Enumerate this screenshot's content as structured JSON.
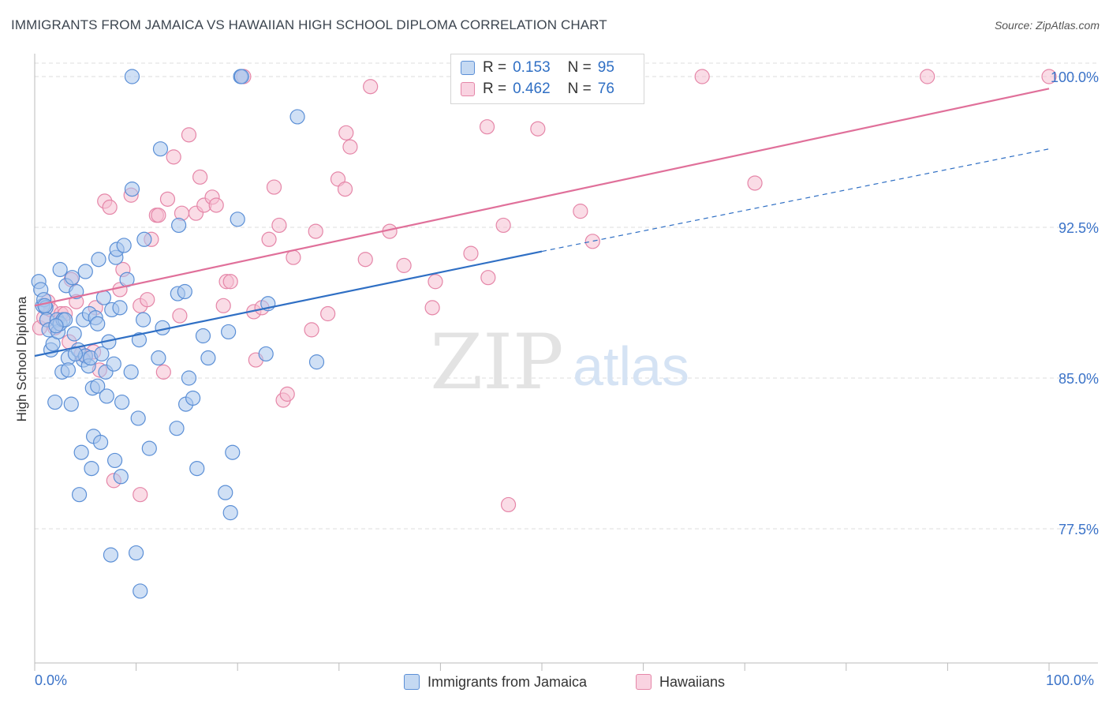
{
  "title": "IMMIGRANTS FROM JAMAICA VS HAWAIIAN HIGH SCHOOL DIPLOMA CORRELATION CHART",
  "source": "Source: ZipAtlas.com",
  "watermark": {
    "zip": "ZIP",
    "atlas": "atlas"
  },
  "colors": {
    "blue_fill": "#a9c6ec",
    "blue_stroke": "#5b8fd6",
    "blue_line": "#2f6fc4",
    "pink_fill": "#f6bfd2",
    "pink_stroke": "#e586a8",
    "pink_line": "#e0709a",
    "axis_label": "#3b73c8",
    "grid": "#dddddd"
  },
  "legend": {
    "series": [
      {
        "r_label": "R =",
        "r_value": "0.153",
        "n_label": "N =",
        "n_value": "95"
      },
      {
        "r_label": "R =",
        "r_value": "0.462",
        "n_label": "N =",
        "n_value": "76"
      }
    ]
  },
  "bottom_legend": {
    "jamaica": "Immigrants from Jamaica",
    "hawaiians": "Hawaiians"
  },
  "chart_data": {
    "type": "scatter",
    "title": "IMMIGRANTS FROM JAMAICA VS HAWAIIAN HIGH SCHOOL DIPLOMA CORRELATION CHART",
    "xlabel": "",
    "ylabel": "High School Diploma",
    "xlim": [
      0,
      100
    ],
    "ylim": [
      70.5,
      101.2
    ],
    "x_tick_labels": [
      "0.0%",
      "100.0%"
    ],
    "y_ticks": [
      77.5,
      85.0,
      92.5,
      100.0
    ],
    "y_tick_labels": [
      "77.5%",
      "85.0%",
      "92.5%",
      "100.0%"
    ],
    "grid": true,
    "legend_position": "top-center",
    "series": [
      {
        "name": "Immigrants from Jamaica",
        "color": "blue",
        "trend": {
          "x0": 0,
          "y0": 86.1,
          "x1": 50,
          "y1": 91.3,
          "dashed_to_x": 100,
          "dashed_to_y": 96.4
        },
        "points": [
          [
            0.4,
            89.8
          ],
          [
            0.6,
            89.4
          ],
          [
            0.8,
            88.6
          ],
          [
            0.9,
            88.9
          ],
          [
            1.1,
            88.5
          ],
          [
            1.2,
            87.9
          ],
          [
            1.4,
            87.4
          ],
          [
            1.6,
            86.4
          ],
          [
            1.8,
            86.7
          ],
          [
            2.0,
            83.8
          ],
          [
            2.2,
            87.9
          ],
          [
            2.3,
            87.3
          ],
          [
            2.5,
            87.7
          ],
          [
            2.5,
            90.4
          ],
          [
            2.7,
            85.3
          ],
          [
            2.8,
            87.9
          ],
          [
            3.1,
            89.6
          ],
          [
            3.3,
            86.0
          ],
          [
            3.3,
            85.4
          ],
          [
            3.6,
            83.7
          ],
          [
            3.7,
            90.0
          ],
          [
            3.9,
            87.2
          ],
          [
            4.1,
            89.3
          ],
          [
            4.3,
            86.4
          ],
          [
            4.4,
            79.2
          ],
          [
            4.6,
            81.3
          ],
          [
            4.8,
            85.9
          ],
          [
            4.8,
            87.9
          ],
          [
            5.0,
            86.1
          ],
          [
            5.0,
            90.3
          ],
          [
            5.3,
            85.6
          ],
          [
            5.4,
            88.2
          ],
          [
            5.5,
            86.0
          ],
          [
            5.6,
            80.5
          ],
          [
            5.7,
            84.5
          ],
          [
            5.8,
            82.1
          ],
          [
            6.0,
            88.0
          ],
          [
            6.2,
            84.6
          ],
          [
            6.2,
            87.7
          ],
          [
            6.3,
            90.9
          ],
          [
            6.5,
            81.8
          ],
          [
            6.6,
            86.2
          ],
          [
            6.8,
            89.0
          ],
          [
            7.0,
            85.3
          ],
          [
            7.1,
            84.1
          ],
          [
            7.3,
            86.8
          ],
          [
            7.5,
            76.2
          ],
          [
            7.6,
            88.4
          ],
          [
            7.8,
            85.7
          ],
          [
            7.9,
            80.9
          ],
          [
            8.0,
            91.0
          ],
          [
            8.1,
            91.4
          ],
          [
            8.4,
            88.5
          ],
          [
            8.5,
            80.1
          ],
          [
            8.6,
            83.8
          ],
          [
            8.8,
            91.6
          ],
          [
            9.1,
            89.9
          ],
          [
            9.5,
            85.3
          ],
          [
            9.6,
            94.4
          ],
          [
            10.0,
            76.3
          ],
          [
            10.2,
            83.0
          ],
          [
            10.3,
            86.9
          ],
          [
            10.4,
            74.4
          ],
          [
            10.7,
            87.9
          ],
          [
            10.8,
            91.9
          ],
          [
            11.3,
            81.5
          ],
          [
            12.2,
            86.0
          ],
          [
            12.4,
            96.4
          ],
          [
            12.6,
            87.5
          ],
          [
            14.0,
            82.5
          ],
          [
            14.1,
            89.2
          ],
          [
            14.2,
            92.6
          ],
          [
            14.8,
            89.3
          ],
          [
            14.9,
            83.7
          ],
          [
            15.2,
            85.0
          ],
          [
            15.6,
            84.0
          ],
          [
            16.0,
            80.5
          ],
          [
            16.6,
            87.1
          ],
          [
            17.1,
            86.0
          ],
          [
            18.8,
            79.3
          ],
          [
            19.1,
            87.3
          ],
          [
            19.3,
            78.3
          ],
          [
            19.5,
            81.3
          ],
          [
            20.0,
            92.9
          ],
          [
            20.3,
            100.0
          ],
          [
            20.4,
            100.0
          ],
          [
            22.8,
            86.2
          ],
          [
            23.0,
            88.7
          ],
          [
            25.9,
            98.0
          ],
          [
            27.8,
            85.8
          ],
          [
            9.6,
            100.0
          ],
          [
            3.0,
            87.9
          ],
          [
            4.0,
            86.2
          ],
          [
            2.1,
            87.6
          ],
          [
            1.0,
            88.6
          ]
        ]
      },
      {
        "name": "Hawaiians",
        "color": "pink",
        "trend": {
          "x0": 0,
          "y0": 88.6,
          "x1": 100,
          "y1": 99.4
        },
        "points": [
          [
            0.5,
            87.5
          ],
          [
            0.9,
            88.0
          ],
          [
            1.3,
            88.8
          ],
          [
            1.6,
            88.4
          ],
          [
            2.0,
            87.5
          ],
          [
            2.6,
            88.2
          ],
          [
            3.0,
            88.2
          ],
          [
            3.4,
            86.8
          ],
          [
            3.6,
            89.9
          ],
          [
            4.1,
            88.8
          ],
          [
            4.6,
            86.2
          ],
          [
            5.0,
            86.1
          ],
          [
            5.8,
            86.3
          ],
          [
            6.0,
            88.5
          ],
          [
            6.4,
            85.4
          ],
          [
            6.9,
            93.8
          ],
          [
            7.4,
            93.5
          ],
          [
            7.8,
            79.9
          ],
          [
            8.4,
            89.4
          ],
          [
            8.7,
            90.4
          ],
          [
            9.5,
            94.1
          ],
          [
            10.4,
            88.6
          ],
          [
            10.4,
            79.2
          ],
          [
            11.1,
            88.9
          ],
          [
            11.5,
            91.9
          ],
          [
            12.0,
            93.1
          ],
          [
            12.2,
            93.1
          ],
          [
            12.7,
            85.3
          ],
          [
            13.1,
            93.9
          ],
          [
            13.7,
            96.0
          ],
          [
            14.3,
            88.1
          ],
          [
            14.5,
            93.2
          ],
          [
            15.2,
            97.1
          ],
          [
            15.9,
            93.2
          ],
          [
            16.3,
            95.0
          ],
          [
            16.7,
            93.6
          ],
          [
            17.5,
            94.0
          ],
          [
            17.9,
            93.6
          ],
          [
            18.6,
            88.6
          ],
          [
            18.9,
            89.8
          ],
          [
            19.3,
            89.8
          ],
          [
            20.6,
            100.0
          ],
          [
            21.6,
            88.3
          ],
          [
            21.8,
            85.9
          ],
          [
            22.4,
            88.5
          ],
          [
            23.1,
            91.9
          ],
          [
            23.6,
            94.5
          ],
          [
            24.1,
            92.6
          ],
          [
            24.5,
            83.9
          ],
          [
            24.9,
            84.2
          ],
          [
            25.5,
            91.0
          ],
          [
            27.3,
            87.4
          ],
          [
            27.7,
            92.3
          ],
          [
            28.9,
            88.2
          ],
          [
            29.9,
            94.9
          ],
          [
            30.6,
            94.4
          ],
          [
            30.7,
            97.2
          ],
          [
            31.1,
            96.5
          ],
          [
            33.1,
            99.5
          ],
          [
            32.6,
            90.9
          ],
          [
            35.0,
            92.3
          ],
          [
            36.4,
            90.6
          ],
          [
            39.2,
            88.5
          ],
          [
            39.5,
            89.8
          ],
          [
            43.0,
            91.2
          ],
          [
            44.6,
            97.5
          ],
          [
            44.7,
            90.0
          ],
          [
            46.2,
            92.6
          ],
          [
            46.7,
            78.7
          ],
          [
            49.6,
            97.4
          ],
          [
            53.8,
            93.3
          ],
          [
            55.0,
            91.8
          ],
          [
            65.8,
            100.0
          ],
          [
            71.0,
            94.7
          ],
          [
            88.0,
            100.0
          ],
          [
            100.0,
            100.0
          ]
        ]
      }
    ]
  }
}
